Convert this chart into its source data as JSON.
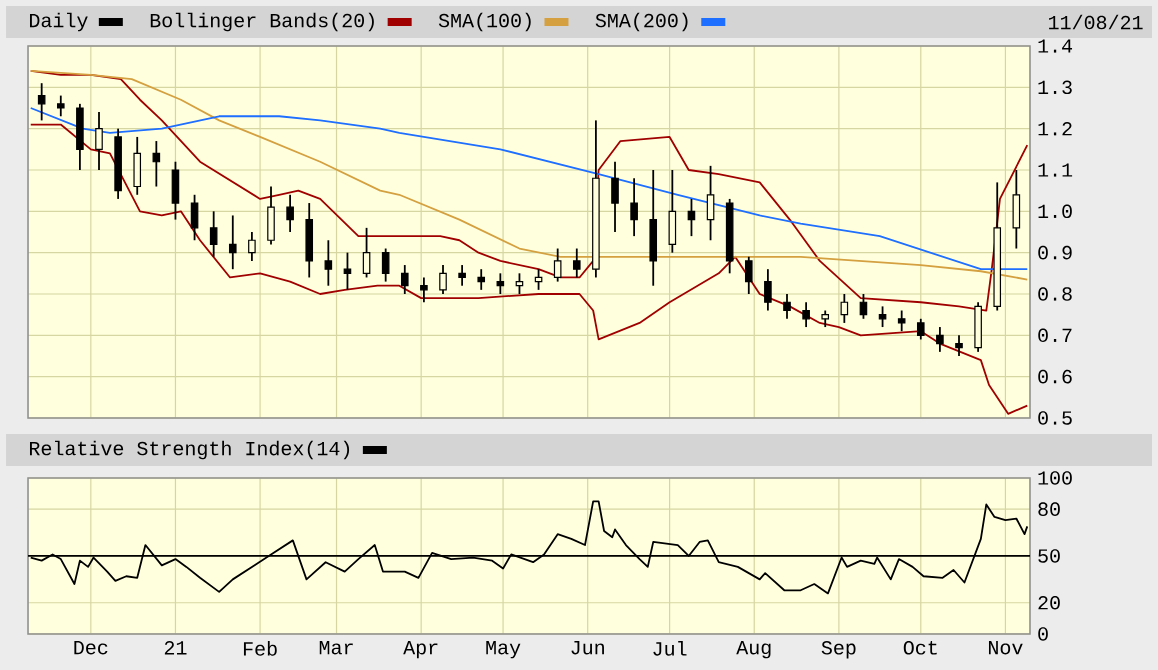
{
  "chart_data": [
    {
      "type": "candlestick",
      "legend": "top",
      "grid": true,
      "marker": "none",
      "tick_labels": "y",
      "annotations": [
        "11/08/21"
      ],
      "xlim": [
        "2020-11-08",
        "2021-11-10"
      ],
      "xticks": [
        {
          "value": "2020-12-01",
          "label": null
        },
        {
          "value": "2021-01-01",
          "label": null
        },
        {
          "value": "2021-02-01",
          "label": null
        },
        {
          "value": "2021-03-01",
          "label": null
        },
        {
          "value": "2021-04-01",
          "label": null
        },
        {
          "value": "2021-05-01",
          "label": null
        },
        {
          "value": "2021-06-01",
          "label": null
        },
        {
          "value": "2021-07-01",
          "label": null
        },
        {
          "value": "2021-08-01",
          "label": null
        },
        {
          "value": "2021-09-01",
          "label": null
        },
        {
          "value": "2021-10-01",
          "label": null
        },
        {
          "value": "2021-11-01",
          "label": null
        }
      ],
      "ylim": [
        0.5,
        1.4
      ],
      "yticks": [
        0.5,
        0.6,
        0.7,
        0.8,
        0.9,
        {
          "value": 1,
          "label": "1.0"
        },
        1.1,
        1.2,
        1.3,
        1.4
      ],
      "series": [
        {
          "name": "Daily",
          "type": "candlestick",
          "color": "#000000",
          "x": [
            "2020-11-13",
            "2020-11-20",
            "2020-11-27",
            "2020-12-04",
            "2020-12-11",
            "2020-12-18",
            "2020-12-25",
            "2021-01-01",
            "2021-01-08",
            "2021-01-15",
            "2021-01-22",
            "2021-01-29",
            "2021-02-05",
            "2021-02-12",
            "2021-02-19",
            "2021-02-26",
            "2021-03-05",
            "2021-03-12",
            "2021-03-19",
            "2021-03-26",
            "2021-04-02",
            "2021-04-09",
            "2021-04-16",
            "2021-04-23",
            "2021-04-30",
            "2021-05-07",
            "2021-05-14",
            "2021-05-21",
            "2021-05-28",
            "2021-06-04",
            "2021-06-11",
            "2021-06-18",
            "2021-06-25",
            "2021-07-02",
            "2021-07-09",
            "2021-07-16",
            "2021-07-23",
            "2021-07-30",
            "2021-08-06",
            "2021-08-13",
            "2021-08-20",
            "2021-08-27",
            "2021-09-03",
            "2021-09-10",
            "2021-09-17",
            "2021-09-24",
            "2021-10-01",
            "2021-10-08",
            "2021-10-15",
            "2021-10-22",
            "2021-10-29",
            "2021-11-05"
          ],
          "ohlc": [
            [
              1.28,
              1.31,
              1.22,
              1.26
            ],
            [
              1.26,
              1.28,
              1.23,
              1.25
            ],
            [
              1.25,
              1.26,
              1.1,
              1.15
            ],
            [
              1.15,
              1.24,
              1.1,
              1.2
            ],
            [
              1.18,
              1.2,
              1.03,
              1.05
            ],
            [
              1.06,
              1.18,
              1.04,
              1.14
            ],
            [
              1.14,
              1.17,
              1.06,
              1.12
            ],
            [
              1.1,
              1.12,
              0.98,
              1.02
            ],
            [
              1.02,
              1.04,
              0.93,
              0.96
            ],
            [
              0.96,
              1.0,
              0.89,
              0.92
            ],
            [
              0.92,
              0.99,
              0.86,
              0.9
            ],
            [
              0.9,
              0.95,
              0.88,
              0.93
            ],
            [
              0.93,
              1.06,
              0.92,
              1.01
            ],
            [
              1.01,
              1.04,
              0.95,
              0.98
            ],
            [
              0.98,
              1.02,
              0.84,
              0.88
            ],
            [
              0.88,
              0.93,
              0.82,
              0.86
            ],
            [
              0.86,
              0.9,
              0.81,
              0.85
            ],
            [
              0.85,
              0.96,
              0.84,
              0.9
            ],
            [
              0.9,
              0.91,
              0.83,
              0.85
            ],
            [
              0.85,
              0.87,
              0.8,
              0.82
            ],
            [
              0.82,
              0.84,
              0.78,
              0.81
            ],
            [
              0.81,
              0.87,
              0.8,
              0.85
            ],
            [
              0.85,
              0.87,
              0.82,
              0.84
            ],
            [
              0.84,
              0.86,
              0.81,
              0.83
            ],
            [
              0.83,
              0.85,
              0.8,
              0.82
            ],
            [
              0.82,
              0.85,
              0.8,
              0.83
            ],
            [
              0.83,
              0.86,
              0.81,
              0.84
            ],
            [
              0.84,
              0.91,
              0.83,
              0.88
            ],
            [
              0.88,
              0.91,
              0.84,
              0.86
            ],
            [
              0.86,
              1.22,
              0.84,
              1.08
            ],
            [
              1.08,
              1.12,
              0.95,
              1.02
            ],
            [
              1.02,
              1.08,
              0.94,
              0.98
            ],
            [
              0.98,
              1.1,
              0.82,
              0.88
            ],
            [
              0.92,
              1.1,
              0.9,
              1.0
            ],
            [
              1.0,
              1.03,
              0.94,
              0.98
            ],
            [
              0.98,
              1.11,
              0.93,
              1.04
            ],
            [
              1.02,
              1.03,
              0.85,
              0.88
            ],
            [
              0.88,
              0.89,
              0.8,
              0.83
            ],
            [
              0.83,
              0.86,
              0.76,
              0.78
            ],
            [
              0.78,
              0.8,
              0.74,
              0.76
            ],
            [
              0.76,
              0.78,
              0.72,
              0.74
            ],
            [
              0.74,
              0.76,
              0.72,
              0.75
            ],
            [
              0.75,
              0.8,
              0.73,
              0.78
            ],
            [
              0.78,
              0.8,
              0.74,
              0.75
            ],
            [
              0.75,
              0.77,
              0.72,
              0.74
            ],
            [
              0.74,
              0.76,
              0.71,
              0.73
            ],
            [
              0.73,
              0.74,
              0.69,
              0.7
            ],
            [
              0.7,
              0.72,
              0.66,
              0.68
            ],
            [
              0.68,
              0.7,
              0.65,
              0.67
            ],
            [
              0.67,
              0.78,
              0.66,
              0.77
            ],
            [
              0.77,
              1.07,
              0.76,
              0.96
            ],
            [
              0.96,
              1.1,
              0.91,
              1.04
            ]
          ]
        },
        {
          "name": "Bollinger Bands(20)",
          "type": "line",
          "color": "#a00000",
          "x": [
            "2020-11-09",
            "2020-11-20",
            "2020-12-01",
            "2020-12-12",
            "2020-12-19",
            "2020-12-27",
            "2021-01-10",
            "2021-02-01",
            "2021-02-08",
            "2021-02-15",
            "2021-02-23",
            "2021-03-09",
            "2021-03-24",
            "2021-04-08",
            "2021-04-15",
            "2021-04-22",
            "2021-04-30",
            "2021-05-14",
            "2021-05-22",
            "2021-05-29",
            "2021-06-03",
            "2021-06-05",
            "2021-06-13",
            "2021-07-01",
            "2021-07-08",
            "2021-07-19",
            "2021-08-03",
            "2021-08-14",
            "2021-08-25",
            "2021-09-09",
            "2021-10-01",
            "2021-10-15",
            "2021-10-25",
            "2021-10-27",
            "2021-10-30",
            "2021-11-09"
          ],
          "values": [
            1.34,
            1.33,
            1.33,
            1.32,
            1.27,
            1.22,
            1.12,
            1.03,
            1.04,
            1.05,
            1.03,
            0.94,
            0.94,
            0.94,
            0.93,
            0.9,
            0.88,
            0.86,
            0.84,
            0.84,
            0.88,
            1.1,
            1.17,
            1.18,
            1.1,
            1.09,
            1.07,
            0.98,
            0.88,
            0.79,
            0.78,
            0.77,
            0.76,
            0.86,
            1.03,
            1.16
          ]
        },
        {
          "type": "line",
          "color": "#a00000",
          "x": [
            "2020-11-09",
            "2020-11-20",
            "2020-12-01",
            "2020-12-08",
            "2020-12-19",
            "2020-12-27",
            "2021-01-03",
            "2021-01-10",
            "2021-01-21",
            "2021-02-01",
            "2021-02-12",
            "2021-02-23",
            "2021-03-04",
            "2021-03-16",
            "2021-03-24",
            "2021-04-01",
            "2021-04-22",
            "2021-05-14",
            "2021-05-29",
            "2021-06-03",
            "2021-06-05",
            "2021-06-20",
            "2021-07-01",
            "2021-07-19",
            "2021-07-25",
            "2021-08-03",
            "2021-08-14",
            "2021-08-25",
            "2021-09-01",
            "2021-09-09",
            "2021-10-01",
            "2021-10-08",
            "2021-10-23",
            "2021-10-26",
            "2021-11-02",
            "2021-11-09"
          ],
          "values": [
            1.21,
            1.21,
            1.15,
            1.14,
            1.0,
            0.99,
            1.0,
            0.93,
            0.84,
            0.85,
            0.83,
            0.8,
            0.81,
            0.82,
            0.82,
            0.79,
            0.79,
            0.8,
            0.8,
            0.76,
            0.69,
            0.73,
            0.78,
            0.85,
            0.89,
            0.8,
            0.77,
            0.73,
            0.72,
            0.7,
            0.71,
            0.68,
            0.64,
            0.58,
            0.51,
            0.53
          ]
        },
        {
          "name": "SMA(100)",
          "type": "line",
          "color": "#d4a040",
          "x": [
            "2020-11-09",
            "2020-12-01",
            "2020-12-16",
            "2021-01-03",
            "2021-01-17",
            "2021-02-01",
            "2021-02-23",
            "2021-03-17",
            "2021-03-24",
            "2021-04-15",
            "2021-05-07",
            "2021-05-22",
            "2021-06-02",
            "2021-06-27",
            "2021-08-03",
            "2021-08-18",
            "2021-09-09",
            "2021-10-01",
            "2021-10-23",
            "2021-11-09"
          ],
          "values": [
            1.34,
            1.33,
            1.32,
            1.27,
            1.22,
            1.18,
            1.12,
            1.05,
            1.04,
            0.98,
            0.91,
            0.89,
            0.89,
            0.89,
            0.89,
            0.89,
            0.88,
            0.87,
            0.855,
            0.835
          ]
        },
        {
          "name": "SMA(200)",
          "type": "line",
          "color": "#1e6eff",
          "x": [
            "2020-11-09",
            "2020-11-28",
            "2020-12-08",
            "2020-12-27",
            "2021-01-17",
            "2021-02-08",
            "2021-02-23",
            "2021-03-17",
            "2021-03-24",
            "2021-04-30",
            "2021-06-05",
            "2021-07-04",
            "2021-08-03",
            "2021-08-18",
            "2021-09-16",
            "2021-10-23",
            "2021-11-09"
          ],
          "values": [
            1.25,
            1.2,
            1.19,
            1.2,
            1.23,
            1.23,
            1.22,
            1.2,
            1.19,
            1.15,
            1.09,
            1.04,
            0.99,
            0.97,
            0.94,
            0.86,
            0.86
          ]
        }
      ]
    },
    {
      "type": "line",
      "legend": "top",
      "grid": true,
      "marker": "none",
      "xlim": [
        "2020-11-08",
        "2021-11-10"
      ],
      "xticks": [
        {
          "value": "2020-12-01",
          "label": "Dec"
        },
        {
          "value": "2021-01-01",
          "label": "21"
        },
        {
          "value": "2021-02-01",
          "label": "Feb"
        },
        {
          "value": "2021-03-01",
          "label": "Mar"
        },
        {
          "value": "2021-04-01",
          "label": "Apr"
        },
        {
          "value": "2021-05-01",
          "label": "May"
        },
        {
          "value": "2021-06-01",
          "label": "Jun"
        },
        {
          "value": "2021-07-01",
          "label": "Jul"
        },
        {
          "value": "2021-08-01",
          "label": "Aug"
        },
        {
          "value": "2021-09-01",
          "label": "Sep"
        },
        {
          "value": "2021-10-01",
          "label": "Oct"
        },
        {
          "value": "2021-11-01",
          "label": "Nov"
        }
      ],
      "ylim": [
        0,
        100
      ],
      "yticks": [
        0,
        20,
        50,
        80,
        100
      ],
      "ref_lines": [
        {
          "axis": "y",
          "value": 50,
          "color": "#000000"
        }
      ],
      "series": [
        {
          "name": "Relative Strength Index(14)",
          "color": "#000000",
          "x": [
            "2020-11-09",
            "2020-11-13",
            "2020-11-17",
            "2020-11-20",
            "2020-11-25",
            "2020-11-27",
            "2020-11-30",
            "2020-12-02",
            "2020-12-07",
            "2020-12-10",
            "2020-12-14",
            "2020-12-18",
            "2020-12-21",
            "2020-12-27",
            "2021-01-01",
            "2021-01-05",
            "2021-01-10",
            "2021-01-17",
            "2021-01-22",
            "2021-01-30",
            "2021-02-06",
            "2021-02-13",
            "2021-02-18",
            "2021-02-25",
            "2021-03-04",
            "2021-03-09",
            "2021-03-15",
            "2021-03-18",
            "2021-03-26",
            "2021-03-31",
            "2021-04-05",
            "2021-04-12",
            "2021-04-20",
            "2021-04-27",
            "2021-05-01",
            "2021-05-04",
            "2021-05-12",
            "2021-05-16",
            "2021-05-21",
            "2021-05-26",
            "2021-05-31",
            "2021-06-03",
            "2021-06-05",
            "2021-06-07",
            "2021-06-10",
            "2021-06-11",
            "2021-06-15",
            "2021-06-20",
            "2021-06-23",
            "2021-06-25",
            "2021-07-04",
            "2021-07-08",
            "2021-07-12",
            "2021-07-15",
            "2021-07-19",
            "2021-07-26",
            "2021-08-03",
            "2021-08-05",
            "2021-08-12",
            "2021-08-18",
            "2021-08-23",
            "2021-08-28",
            "2021-09-02",
            "2021-09-04",
            "2021-09-09",
            "2021-09-14",
            "2021-09-15",
            "2021-09-20",
            "2021-09-23",
            "2021-09-28",
            "2021-10-02",
            "2021-10-09",
            "2021-10-13",
            "2021-10-17",
            "2021-10-23",
            "2021-10-25",
            "2021-10-28",
            "2021-11-01",
            "2021-11-05",
            "2021-11-08",
            "2021-11-09"
          ],
          "values": [
            49,
            47,
            51,
            48,
            32,
            47,
            43,
            49,
            40,
            34,
            37,
            36,
            57,
            44,
            48,
            43,
            36,
            27,
            35,
            44,
            52,
            60,
            35,
            46,
            40,
            48,
            57,
            40,
            40,
            36,
            52,
            48,
            49,
            47,
            42,
            51,
            46,
            51,
            64,
            61,
            57,
            85,
            85,
            66,
            62,
            67,
            57,
            48,
            43,
            59,
            57,
            50,
            59,
            60,
            46,
            43,
            35,
            39,
            28,
            28,
            32,
            26,
            49,
            43,
            47,
            45,
            49,
            35,
            48,
            43,
            37,
            36,
            41,
            33,
            61,
            83,
            75,
            73,
            74,
            64,
            69
          ]
        }
      ]
    }
  ]
}
